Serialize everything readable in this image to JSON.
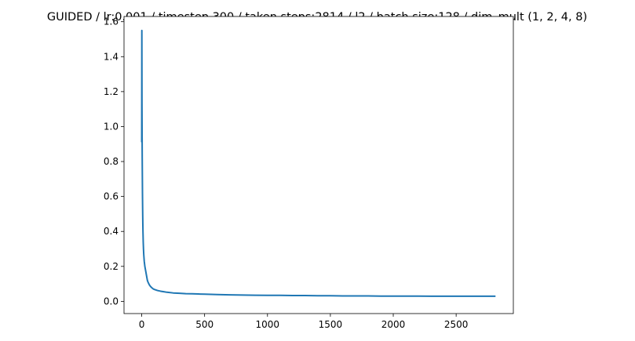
{
  "chart_data": {
    "type": "line",
    "title": "GUIDED / lr:0.001 / timestep 300 / taken steps:2814 / l2 / batch size:128 / dim_mult (1, 2, 4, 8)",
    "xlabel": "",
    "ylabel": "",
    "xlim": [
      -140.7,
      2954.7
    ],
    "ylim": [
      -0.07,
      1.63
    ],
    "xticks": [
      0,
      500,
      1000,
      1500,
      2000,
      2500
    ],
    "yticks": [
      0.0,
      0.2,
      0.4,
      0.6,
      0.8,
      1.0,
      1.2,
      1.4,
      1.6
    ],
    "xtick_labels": [
      "0",
      "500",
      "1000",
      "1500",
      "2000",
      "2500"
    ],
    "ytick_labels": [
      "0.0",
      "0.2",
      "0.4",
      "0.6",
      "0.8",
      "1.0",
      "1.2",
      "1.4",
      "1.6"
    ],
    "grid": false,
    "line_color": "#1f77b4",
    "series": [
      {
        "x": [
          0,
          1,
          2,
          3,
          4,
          5,
          6,
          7,
          8,
          9,
          10,
          12,
          14,
          16,
          18,
          20,
          25,
          30,
          35,
          40,
          45,
          50,
          60,
          70,
          80,
          90,
          100,
          125,
          150,
          175,
          200,
          250,
          300,
          350,
          400,
          450,
          500,
          600,
          700,
          800,
          900,
          1000,
          1100,
          1200,
          1300,
          1400,
          1500,
          1600,
          1700,
          1800,
          1900,
          2000,
          2100,
          2200,
          2300,
          2400,
          2500,
          2600,
          2700,
          2813
        ],
        "y": [
          0.91,
          1.55,
          1.13,
          0.95,
          0.82,
          0.72,
          0.62,
          0.55,
          0.49,
          0.44,
          0.4,
          0.34,
          0.3,
          0.27,
          0.25,
          0.23,
          0.2,
          0.18,
          0.16,
          0.14,
          0.12,
          0.11,
          0.095,
          0.085,
          0.078,
          0.072,
          0.068,
          0.062,
          0.058,
          0.055,
          0.052,
          0.048,
          0.046,
          0.044,
          0.043,
          0.042,
          0.041,
          0.039,
          0.037,
          0.036,
          0.035,
          0.034,
          0.034,
          0.033,
          0.033,
          0.032,
          0.032,
          0.031,
          0.031,
          0.031,
          0.03,
          0.03,
          0.03,
          0.03,
          0.029,
          0.029,
          0.029,
          0.029,
          0.029,
          0.029
        ]
      }
    ]
  }
}
